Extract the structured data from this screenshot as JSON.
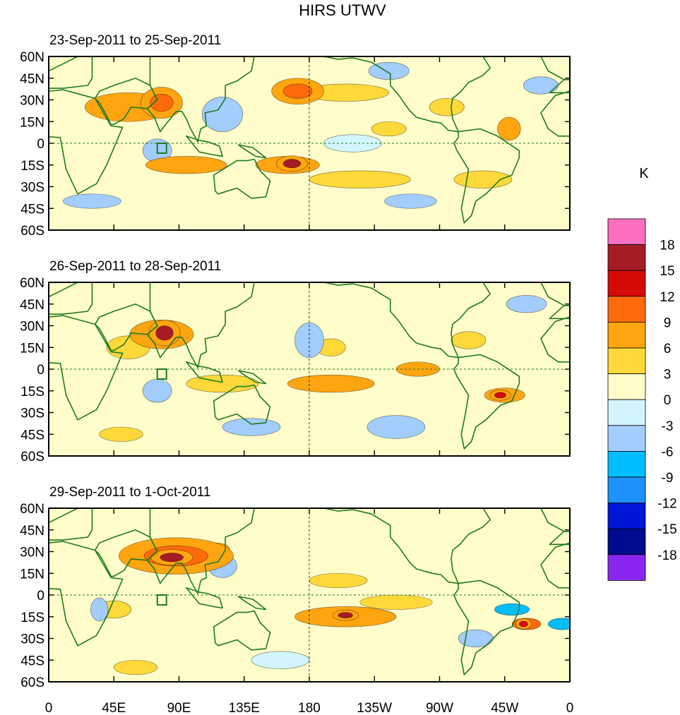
{
  "chart_data": {
    "type": "heatmap",
    "title": "HIRS UTWV",
    "units_label": "K",
    "x_ticks": [
      "0",
      "45E",
      "90E",
      "135E",
      "180",
      "135W",
      "90W",
      "45W",
      "0"
    ],
    "y_ticks": [
      "60N",
      "45N",
      "30N",
      "15N",
      "0",
      "15S",
      "30S",
      "45S",
      "60S"
    ],
    "xlim": [
      0,
      360
    ],
    "ylim": [
      -60,
      60
    ],
    "panels": [
      {
        "title": "23-Sep-2011 to 25-Sep-2011",
        "blobs": [
          {
            "lon": 55,
            "lat": 25,
            "rx": 30,
            "ry": 10,
            "v": 6
          },
          {
            "lon": 78,
            "lat": 28,
            "rx": 8,
            "ry": 6,
            "v": 10
          },
          {
            "lon": 95,
            "lat": -15,
            "rx": 28,
            "ry": 6,
            "v": 6
          },
          {
            "lon": 165,
            "lat": -15,
            "rx": 22,
            "ry": 6,
            "v": 8
          },
          {
            "lon": 168,
            "lat": -14,
            "rx": 6,
            "ry": 3,
            "v": 15
          },
          {
            "lon": 172,
            "lat": 36,
            "rx": 10,
            "ry": 5,
            "v": 11
          },
          {
            "lon": 205,
            "lat": 35,
            "rx": 30,
            "ry": 6,
            "v": 5
          },
          {
            "lon": 215,
            "lat": -25,
            "rx": 35,
            "ry": 6,
            "v": 5
          },
          {
            "lon": 235,
            "lat": 10,
            "rx": 12,
            "ry": 5,
            "v": 5
          },
          {
            "lon": 318,
            "lat": 10,
            "rx": 8,
            "ry": 8,
            "v": 8
          },
          {
            "lon": 300,
            "lat": -25,
            "rx": 20,
            "ry": 6,
            "v": 5
          },
          {
            "lon": 275,
            "lat": 25,
            "rx": 12,
            "ry": 6,
            "v": 5
          },
          {
            "lon": 30,
            "lat": -40,
            "rx": 20,
            "ry": 5,
            "v": -4
          },
          {
            "lon": 120,
            "lat": 20,
            "rx": 14,
            "ry": 12,
            "v": -4
          },
          {
            "lon": 75,
            "lat": -5,
            "rx": 10,
            "ry": 8,
            "v": -5
          },
          {
            "lon": 250,
            "lat": -40,
            "rx": 18,
            "ry": 5,
            "v": -4
          },
          {
            "lon": 235,
            "lat": 50,
            "rx": 14,
            "ry": 6,
            "v": -5
          },
          {
            "lon": 340,
            "lat": 40,
            "rx": 12,
            "ry": 6,
            "v": -4
          },
          {
            "lon": 210,
            "lat": 0,
            "rx": 20,
            "ry": 6,
            "v": -2
          }
        ]
      },
      {
        "title": "26-Sep-2011 to 28-Sep-2011",
        "blobs": [
          {
            "lon": 78,
            "lat": 24,
            "rx": 22,
            "ry": 10,
            "v": 8
          },
          {
            "lon": 80,
            "lat": 25,
            "rx": 6,
            "ry": 5,
            "v": 16
          },
          {
            "lon": 55,
            "lat": 15,
            "rx": 15,
            "ry": 8,
            "v": 4
          },
          {
            "lon": 120,
            "lat": -10,
            "rx": 25,
            "ry": 6,
            "v": 5
          },
          {
            "lon": 195,
            "lat": -10,
            "rx": 30,
            "ry": 6,
            "v": 6
          },
          {
            "lon": 255,
            "lat": 0,
            "rx": 15,
            "ry": 5,
            "v": 6
          },
          {
            "lon": 315,
            "lat": -18,
            "rx": 14,
            "ry": 5,
            "v": 8
          },
          {
            "lon": 312,
            "lat": -18,
            "rx": 4,
            "ry": 2,
            "v": 14
          },
          {
            "lon": 195,
            "lat": 15,
            "rx": 10,
            "ry": 6,
            "v": 5
          },
          {
            "lon": 290,
            "lat": 20,
            "rx": 12,
            "ry": 6,
            "v": 5
          },
          {
            "lon": 50,
            "lat": -45,
            "rx": 15,
            "ry": 5,
            "v": 5
          },
          {
            "lon": 75,
            "lat": -15,
            "rx": 10,
            "ry": 8,
            "v": -6
          },
          {
            "lon": 180,
            "lat": 20,
            "rx": 10,
            "ry": 12,
            "v": -5
          },
          {
            "lon": 140,
            "lat": -40,
            "rx": 20,
            "ry": 6,
            "v": -4
          },
          {
            "lon": 240,
            "lat": -40,
            "rx": 20,
            "ry": 8,
            "v": -4
          },
          {
            "lon": 330,
            "lat": 45,
            "rx": 14,
            "ry": 6,
            "v": -4
          }
        ]
      },
      {
        "title": "29-Sep-2011 to 1-Oct-2011",
        "blobs": [
          {
            "lon": 88,
            "lat": 27,
            "rx": 22,
            "ry": 7,
            "v": 10
          },
          {
            "lon": 85,
            "lat": 26,
            "rx": 8,
            "ry": 3,
            "v": 17
          },
          {
            "lon": 115,
            "lat": 32,
            "rx": 10,
            "ry": 4,
            "v": 6
          },
          {
            "lon": 205,
            "lat": -15,
            "rx": 35,
            "ry": 7,
            "v": 7
          },
          {
            "lon": 205,
            "lat": -14,
            "rx": 5,
            "ry": 2,
            "v": 15
          },
          {
            "lon": 240,
            "lat": -5,
            "rx": 25,
            "ry": 5,
            "v": 5
          },
          {
            "lon": 200,
            "lat": 10,
            "rx": 20,
            "ry": 5,
            "v": 4
          },
          {
            "lon": 330,
            "lat": -20,
            "rx": 10,
            "ry": 4,
            "v": 9
          },
          {
            "lon": 328,
            "lat": -20,
            "rx": 3,
            "ry": 2,
            "v": 14
          },
          {
            "lon": 60,
            "lat": -50,
            "rx": 15,
            "ry": 5,
            "v": 5
          },
          {
            "lon": 45,
            "lat": -10,
            "rx": 12,
            "ry": 6,
            "v": 5
          },
          {
            "lon": 320,
            "lat": -10,
            "rx": 12,
            "ry": 4,
            "v": -9
          },
          {
            "lon": 355,
            "lat": -20,
            "rx": 10,
            "ry": 4,
            "v": -7
          },
          {
            "lon": 120,
            "lat": 20,
            "rx": 10,
            "ry": 8,
            "v": -5
          },
          {
            "lon": 35,
            "lat": -10,
            "rx": 6,
            "ry": 8,
            "v": -5
          },
          {
            "lon": 295,
            "lat": -30,
            "rx": 12,
            "ry": 6,
            "v": -5
          },
          {
            "lon": 160,
            "lat": -45,
            "rx": 20,
            "ry": 6,
            "v": -3
          }
        ]
      }
    ],
    "colorbar": {
      "labels": [
        "18",
        "15",
        "12",
        "9",
        "6",
        "3",
        "0",
        "-3",
        "-6",
        "-9",
        "-12",
        "-15",
        "-18"
      ],
      "colors": [
        "#fb6fbe",
        "#a61c24",
        "#d50b08",
        "#ff6a0b",
        "#ffa510",
        "#ffd93a",
        "#fffdca",
        "#d2f5fe",
        "#a2cdfd",
        "#00befd",
        "#1e91fb",
        "#0015d6",
        "#000b8f",
        "#8b26f1"
      ],
      "levels": [
        -18,
        -15,
        -12,
        -9,
        -6,
        -3,
        0,
        3,
        6,
        9,
        12,
        15,
        18
      ]
    }
  }
}
